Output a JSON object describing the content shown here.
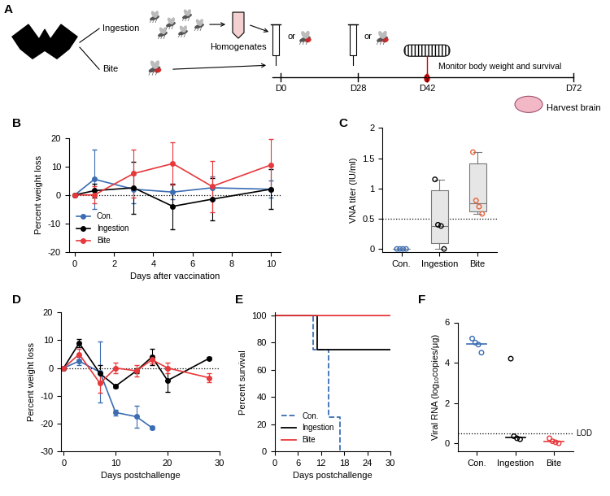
{
  "diagram": {
    "panel": "A",
    "branches": [
      "Ingestion",
      "Bite"
    ],
    "sample": "Homogenates",
    "or": "or",
    "timeline": [
      "D0",
      "D28",
      "D42",
      "D72"
    ],
    "monitor": "Monitor body weight and survival",
    "harvest": "Harvest brain"
  },
  "chart_data": [
    {
      "panel": "B",
      "type": "line",
      "xlabel": "Days after vaccination",
      "ylabel": "Percent weight loss",
      "xlim": [
        -0.3,
        10.5
      ],
      "xticks": [
        0,
        2,
        4,
        6,
        8,
        10
      ],
      "ylim": [
        -20,
        20
      ],
      "yticks": [
        -20,
        -10,
        0,
        10,
        20
      ],
      "reference_line": 0,
      "legend": "lower left",
      "series": [
        {
          "name": "Con.",
          "color": "#3b6db3",
          "marker": "o",
          "x": [
            0,
            1,
            3,
            5,
            7,
            10
          ],
          "values": [
            0,
            5.5,
            2,
            1,
            2.5,
            2
          ],
          "errors": [
            0,
            10.5,
            5,
            2.5,
            4,
            3
          ]
        },
        {
          "name": "Ingestion",
          "color": "#000000",
          "marker": "o",
          "x": [
            0,
            1,
            3,
            5,
            7,
            10
          ],
          "values": [
            0,
            1.5,
            2.5,
            -4,
            -1.5,
            2
          ],
          "errors": [
            0,
            2.5,
            9,
            8,
            7.5,
            7
          ]
        },
        {
          "name": "Bite",
          "color": "#e8383b",
          "marker": "o",
          "x": [
            0,
            1,
            3,
            5,
            7,
            10
          ],
          "values": [
            0,
            0,
            7.5,
            11,
            3,
            10.5
          ],
          "errors": [
            0,
            3,
            8.5,
            7.5,
            9,
            9
          ]
        }
      ]
    },
    {
      "panel": "C",
      "type": "box",
      "ylabel": "VNA titer (IU/ml)",
      "categories": [
        "Con.",
        "Ingestion",
        "Bite"
      ],
      "colors": [
        "#3b6db3",
        "#000000",
        "#e8643a"
      ],
      "ylim": [
        -0.05,
        2
      ],
      "yticks": [
        0,
        0.5,
        1,
        1.5,
        2
      ],
      "reference_line": 0.5,
      "points": [
        [
          0,
          0,
          0,
          0
        ],
        [
          1.15,
          0.4,
          0.38,
          0
        ],
        [
          1.6,
          0.8,
          0.7,
          0.58
        ]
      ],
      "boxes": [
        {
          "whislo": 0,
          "q1": 0,
          "median": 0,
          "q3": 0,
          "whishi": 0
        },
        {
          "whislo": 0,
          "q1": 0.1,
          "median": 0.38,
          "q3": 0.97,
          "whishi": 1.15
        },
        {
          "whislo": 0.58,
          "q1": 0.62,
          "median": 0.75,
          "q3": 1.42,
          "whishi": 1.6
        }
      ]
    },
    {
      "panel": "D",
      "type": "line",
      "xlabel": "Days postchallenge",
      "ylabel": "Percent weight loss",
      "xlim": [
        -0.5,
        30
      ],
      "xticks": [
        0,
        10,
        20,
        30
      ],
      "ylim": [
        -30,
        20
      ],
      "yticks": [
        -30,
        -20,
        -10,
        0,
        10,
        20
      ],
      "reference_line": 0,
      "series": [
        {
          "name": "Con.",
          "color": "#3b6db3",
          "marker": "o",
          "x": [
            0,
            3,
            7,
            10,
            14,
            17
          ],
          "values": [
            0,
            2.5,
            -1.5,
            -16,
            -17.5,
            -21.5
          ],
          "errors": [
            0,
            1.5,
            11,
            1,
            4,
            0.5
          ]
        },
        {
          "name": "Ingestion",
          "color": "#000000",
          "marker": "o",
          "x": [
            0,
            3,
            7,
            10,
            14,
            17,
            20,
            28
          ],
          "values": [
            0,
            9,
            -2,
            -6.5,
            -1,
            4,
            -4.5,
            3.5
          ],
          "errors": [
            0,
            1.5,
            3,
            0.5,
            1,
            3,
            4,
            0.5
          ]
        },
        {
          "name": "Bite",
          "color": "#e8383b",
          "marker": "o",
          "x": [
            0,
            3,
            7,
            10,
            14,
            17,
            20,
            28
          ],
          "values": [
            0,
            5,
            -5.5,
            0,
            -1,
            3,
            0,
            -3.5
          ],
          "errors": [
            0,
            2,
            3.5,
            2,
            2,
            1.5,
            2,
            1.5
          ]
        }
      ]
    },
    {
      "panel": "E",
      "type": "step",
      "xlabel": "Days postchallenge",
      "ylabel": "Percent survival",
      "xlim": [
        0,
        30
      ],
      "xticks": [
        0,
        6,
        12,
        18,
        24,
        30
      ],
      "ylim": [
        0,
        102
      ],
      "yticks": [
        0,
        20,
        40,
        60,
        80,
        100
      ],
      "legend": "lower left",
      "series": [
        {
          "name": "Con.",
          "color": "#3b6db3",
          "line_style": "dashed",
          "x": [
            0,
            10,
            14,
            17
          ],
          "values": [
            100,
            75,
            25,
            0
          ]
        },
        {
          "name": "Ingestion",
          "color": "#000000",
          "line_style": "solid",
          "x": [
            0,
            11,
            30
          ],
          "values": [
            100,
            75,
            75
          ]
        },
        {
          "name": "Bite",
          "color": "#e8383b",
          "line_style": "solid",
          "x": [
            0,
            30
          ],
          "values": [
            100,
            100
          ]
        }
      ]
    },
    {
      "panel": "F",
      "type": "scatter",
      "ylabel": "Viral RNA (log₁₀copies/μg)",
      "categories": [
        "Con.",
        "Ingestion",
        "Bite"
      ],
      "colors": [
        "#3b6db3",
        "#000000",
        "#e8383b"
      ],
      "ylim": [
        -0.4,
        6
      ],
      "yticks": [
        0,
        2,
        4,
        6
      ],
      "reference_line": {
        "value": 0.5,
        "label": "LOD"
      },
      "points": [
        [
          5.2,
          5.0,
          4.9,
          4.5
        ],
        [
          4.2,
          0.35,
          0.25,
          0.2
        ],
        [
          0.25,
          0.1,
          0.05,
          0.0
        ]
      ],
      "medians": [
        4.95,
        0.3,
        0.08
      ]
    }
  ]
}
